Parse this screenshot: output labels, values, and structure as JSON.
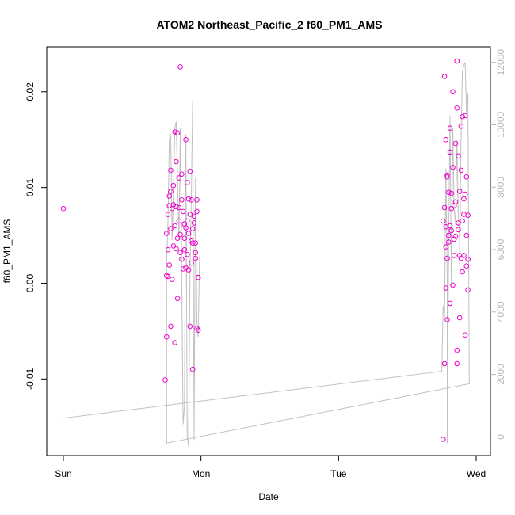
{
  "chart_data": {
    "type": "scatter",
    "title": "ATOM2 Northeast_Pacific_2 f60_PM1_AMS",
    "xlabel": "Date",
    "ylabel": "f60_PM1_AMS",
    "x_unit": "days since Sun 00:00",
    "xlim": [
      0,
      3.0
    ],
    "ylim": [
      -0.018,
      0.0247
    ],
    "x_ticks": [
      {
        "value": 0,
        "label": "Sun"
      },
      {
        "value": 1,
        "label": "Mon"
      },
      {
        "value": 2,
        "label": "Tue"
      },
      {
        "value": 3,
        "label": "Wed"
      }
    ],
    "y_ticks": [
      {
        "value": -0.01,
        "label": "-0.01"
      },
      {
        "value": 0.0,
        "label": "0.00"
      },
      {
        "value": 0.01,
        "label": "0.01"
      },
      {
        "value": 0.02,
        "label": "0.02"
      }
    ],
    "y2lim": [
      -600,
      12500
    ],
    "y2_ticks": [
      {
        "value": 0,
        "label": "0"
      },
      {
        "value": 2000,
        "label": "2000"
      },
      {
        "value": 4000,
        "label": "4000"
      },
      {
        "value": 6000,
        "label": "6000"
      },
      {
        "value": 8000,
        "label": "8000"
      },
      {
        "value": 10000,
        "label": "10000"
      },
      {
        "value": 12000,
        "label": "12000"
      }
    ],
    "series": [
      {
        "type": "scatter",
        "color": "#ee00cc",
        "marker": "open-circle",
        "points": [
          [
            0.0,
            0.0078
          ],
          [
            0.74,
            -0.0101
          ],
          [
            0.75,
            0.0008
          ],
          [
            0.75,
            0.0052
          ],
          [
            0.75,
            -0.0056
          ],
          [
            0.76,
            0.0007
          ],
          [
            0.76,
            0.0035
          ],
          [
            0.76,
            0.0072
          ],
          [
            0.77,
            0.0081
          ],
          [
            0.77,
            0.0019
          ],
          [
            0.77,
            0.0091
          ],
          [
            0.78,
            0.0118
          ],
          [
            0.78,
            0.0096
          ],
          [
            0.78,
            -0.0045
          ],
          [
            0.78,
            0.0057
          ],
          [
            0.79,
            0.0078
          ],
          [
            0.79,
            0.0004
          ],
          [
            0.8,
            0.0082
          ],
          [
            0.8,
            0.0102
          ],
          [
            0.8,
            0.0039
          ],
          [
            0.81,
            0.006
          ],
          [
            0.81,
            0.0158
          ],
          [
            0.81,
            -0.0062
          ],
          [
            0.82,
            0.008
          ],
          [
            0.82,
            0.0127
          ],
          [
            0.82,
            0.0036
          ],
          [
            0.83,
            -0.0016
          ],
          [
            0.83,
            0.0047
          ],
          [
            0.83,
            0.0157
          ],
          [
            0.84,
            0.0065
          ],
          [
            0.84,
            0.011
          ],
          [
            0.84,
            0.0079
          ],
          [
            0.85,
            0.0226
          ],
          [
            0.85,
            0.0032
          ],
          [
            0.85,
            0.0051
          ],
          [
            0.86,
            0.0114
          ],
          [
            0.86,
            0.0087
          ],
          [
            0.86,
            0.0025
          ],
          [
            0.87,
            0.0061
          ],
          [
            0.87,
            0.0015
          ],
          [
            0.87,
            0.0075
          ],
          [
            0.88,
            0.0035
          ],
          [
            0.88,
            0.0047
          ],
          [
            0.88,
            0.0062
          ],
          [
            0.89,
            0.0058
          ],
          [
            0.89,
            0.0016
          ],
          [
            0.89,
            0.015
          ],
          [
            0.9,
            0.0105
          ],
          [
            0.9,
            0.003
          ],
          [
            0.9,
            0.0065
          ],
          [
            0.91,
            0.0052
          ],
          [
            0.91,
            0.0088
          ],
          [
            0.91,
            0.0014
          ],
          [
            0.92,
            0.0072
          ],
          [
            0.92,
            -0.0045
          ],
          [
            0.92,
            0.0117
          ],
          [
            0.93,
            0.0044
          ],
          [
            0.93,
            0.0087
          ],
          [
            0.93,
            0.0021
          ],
          [
            0.94,
            -0.009
          ],
          [
            0.94,
            0.0057
          ],
          [
            0.94,
            0.0042
          ],
          [
            0.95,
            0.0063
          ],
          [
            0.95,
            0.007
          ],
          [
            0.96,
            0.0026
          ],
          [
            0.96,
            0.0032
          ],
          [
            0.96,
            0.0042
          ],
          [
            0.97,
            0.0075
          ],
          [
            0.97,
            0.0087
          ],
          [
            0.97,
            -0.0047
          ],
          [
            0.98,
            0.0006
          ],
          [
            0.98,
            -0.0049
          ],
          [
            0.98,
            0.0006
          ],
          [
            2.76,
            -0.0163
          ],
          [
            2.76,
            0.0065
          ],
          [
            2.77,
            0.0079
          ],
          [
            2.77,
            0.0216
          ],
          [
            2.77,
            -0.0084
          ],
          [
            2.78,
            0.0038
          ],
          [
            2.78,
            -0.0005
          ],
          [
            2.78,
            0.015
          ],
          [
            2.78,
            0.0059
          ],
          [
            2.79,
            0.0113
          ],
          [
            2.79,
            0.0111
          ],
          [
            2.79,
            -0.0038
          ],
          [
            2.79,
            0.0026
          ],
          [
            2.8,
            0.0043
          ],
          [
            2.8,
            0.0095
          ],
          [
            2.8,
            0.005
          ],
          [
            2.81,
            0.0137
          ],
          [
            2.81,
            0.0162
          ],
          [
            2.81,
            -0.0021
          ],
          [
            2.81,
            0.006
          ],
          [
            2.82,
            0.0078
          ],
          [
            2.82,
            0.0094
          ],
          [
            2.82,
            0.0055
          ],
          [
            2.83,
            0.02
          ],
          [
            2.83,
            0.0121
          ],
          [
            2.83,
            -0.0002
          ],
          [
            2.84,
            0.0046
          ],
          [
            2.84,
            0.0081
          ],
          [
            2.84,
            0.0029
          ],
          [
            2.85,
            0.0146
          ],
          [
            2.85,
            0.0085
          ],
          [
            2.85,
            0.0049
          ],
          [
            2.86,
            0.0232
          ],
          [
            2.86,
            0.0183
          ],
          [
            2.86,
            -0.007
          ],
          [
            2.86,
            -0.0084
          ],
          [
            2.87,
            0.0133
          ],
          [
            2.87,
            0.0063
          ],
          [
            2.87,
            0.0056
          ],
          [
            2.88,
            0.0096
          ],
          [
            2.88,
            0.0029
          ],
          [
            2.88,
            -0.0036
          ],
          [
            2.89,
            0.0164
          ],
          [
            2.89,
            0.0118
          ],
          [
            2.89,
            0.0026
          ],
          [
            2.9,
            0.0174
          ],
          [
            2.9,
            0.0065
          ],
          [
            2.9,
            0.0012
          ],
          [
            2.91,
            0.0088
          ],
          [
            2.91,
            0.0072
          ],
          [
            2.91,
            0.0029
          ],
          [
            2.92,
            0.0093
          ],
          [
            2.92,
            0.0175
          ],
          [
            2.92,
            -0.0054
          ],
          [
            2.93,
            0.0111
          ],
          [
            2.93,
            0.0018
          ],
          [
            2.93,
            0.005
          ],
          [
            2.94,
            0.0071
          ],
          [
            2.94,
            0.0025
          ],
          [
            2.94,
            -0.0007
          ]
        ]
      },
      {
        "type": "line",
        "color": "#c0c0c0",
        "axis": "right",
        "points": [
          [
            0.0,
            600
          ],
          [
            2.75,
            2100
          ],
          [
            2.76,
            4200
          ],
          [
            2.77,
            3800
          ],
          [
            2.78,
            8600
          ],
          [
            2.79,
            5000
          ],
          [
            2.79,
            -200
          ],
          [
            2.8,
            6300
          ],
          [
            2.81,
            10300
          ],
          [
            2.82,
            4800
          ],
          [
            2.83,
            9900
          ],
          [
            2.84,
            7300
          ],
          [
            2.85,
            6800
          ],
          [
            2.86,
            9500
          ],
          [
            2.87,
            7200
          ],
          [
            2.88,
            6200
          ],
          [
            2.88,
            5500
          ],
          [
            2.89,
            9600
          ],
          [
            2.9,
            11700
          ],
          [
            2.91,
            11900
          ],
          [
            2.92,
            12000
          ],
          [
            2.93,
            10400
          ],
          [
            2.94,
            11000
          ],
          [
            2.95,
            1700
          ],
          [
            0.75,
            -200
          ],
          [
            0.75,
            5600
          ],
          [
            0.76,
            6900
          ],
          [
            0.77,
            9500
          ],
          [
            0.78,
            9700
          ],
          [
            0.79,
            6300
          ],
          [
            0.8,
            7900
          ],
          [
            0.81,
            9900
          ],
          [
            0.82,
            10100
          ],
          [
            0.83,
            8200
          ],
          [
            0.84,
            6300
          ],
          [
            0.85,
            9900
          ],
          [
            0.86,
            5000
          ],
          [
            0.87,
            400
          ],
          [
            0.88,
            1000
          ],
          [
            0.89,
            9700
          ],
          [
            0.9,
            0
          ],
          [
            0.91,
            -300
          ],
          [
            0.92,
            5300
          ],
          [
            0.93,
            7700
          ],
          [
            0.94,
            10800
          ],
          [
            0.95,
            -100
          ],
          [
            0.96,
            8300
          ],
          [
            0.97,
            3700
          ],
          [
            0.98,
            3200
          ],
          [
            0.99,
            5800
          ]
        ]
      }
    ]
  }
}
